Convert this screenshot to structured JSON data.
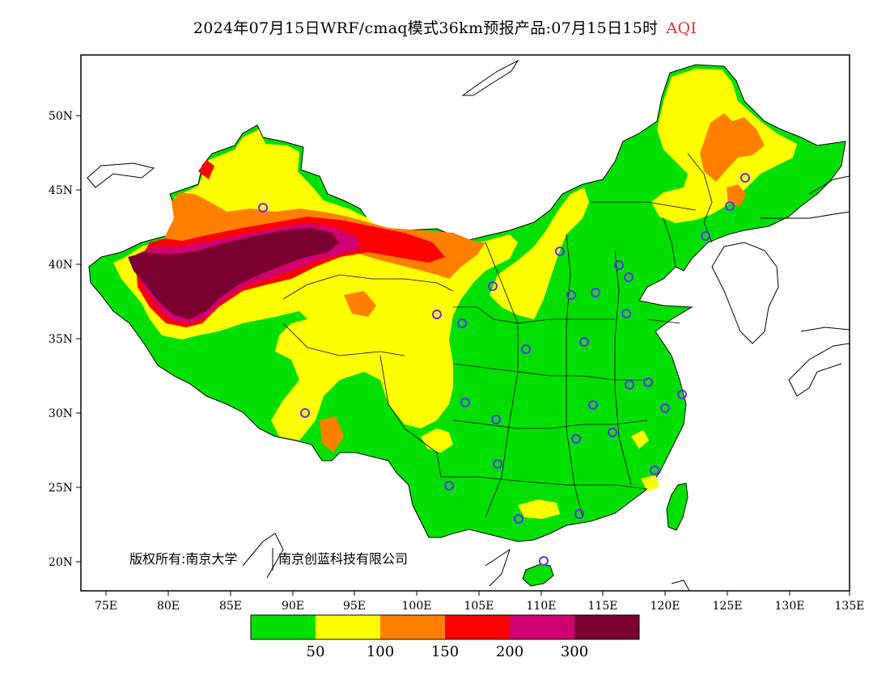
{
  "title": {
    "main": "2024年07月15日WRF/cmaq模式36km预报产品:07月15日15时",
    "variable": "AQI",
    "variable_color": "#e03030"
  },
  "axes": {
    "lat_labels": [
      "50N",
      "45N",
      "40N",
      "35N",
      "30N",
      "25N",
      "20N"
    ],
    "lon_labels": [
      "75E",
      "80E",
      "85E",
      "90E",
      "95E",
      "100E",
      "105E",
      "110E",
      "115E",
      "120E",
      "125E",
      "130E",
      "135E"
    ]
  },
  "copyright": {
    "owner_a": "版权所有:南京大学",
    "owner_b": "南京创蓝科技有限公司"
  },
  "legend": {
    "colors": [
      "#00e000",
      "#ffff00",
      "#ff8000",
      "#ff0000",
      "#d00070",
      "#7a0030"
    ],
    "labels": [
      "50",
      "100",
      "150",
      "200",
      "300"
    ]
  },
  "land_color": "#00e000",
  "sea_color": "#ffffff",
  "station_marker_color": "#6a2bff"
}
